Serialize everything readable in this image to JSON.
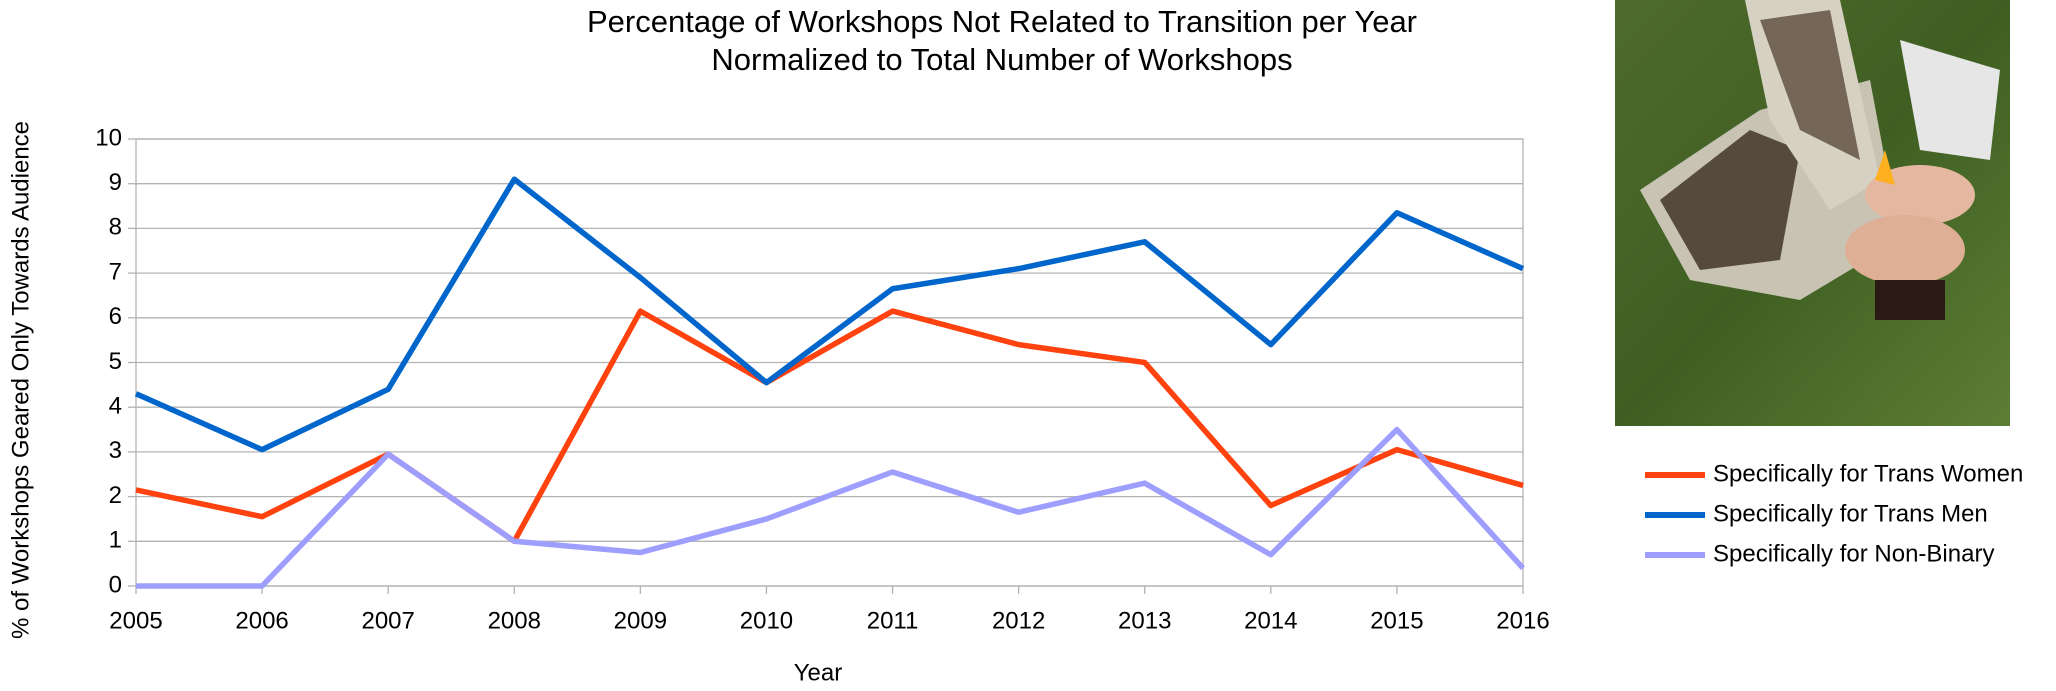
{
  "chart_data": {
    "type": "line",
    "title": [
      "Percentage of Workshops Not Related to Transition per Year",
      "Normalized to Total Number of Workshops"
    ],
    "x_label": "Year",
    "y_label": "% of Workshops Geared Only Towards Audience",
    "x": [
      2005,
      2006,
      2007,
      2008,
      2009,
      2010,
      2011,
      2012,
      2013,
      2014,
      2015,
      2016
    ],
    "series": [
      {
        "name": "Specifically for Trans Women",
        "color": "#ff420e",
        "values": [
          2.15,
          1.55,
          2.95,
          1.0,
          6.15,
          4.55,
          6.15,
          5.4,
          5.0,
          1.8,
          3.05,
          2.25
        ]
      },
      {
        "name": "Specifically for Trans Men",
        "color": "#0066cc",
        "values": [
          4.3,
          3.05,
          4.4,
          9.1,
          6.9,
          4.55,
          6.65,
          7.1,
          7.7,
          5.4,
          8.35,
          7.1
        ]
      },
      {
        "name": "Specifically for Non-Binary",
        "color": "#9e9eff",
        "values": [
          0,
          0,
          2.95,
          1.0,
          0.75,
          1.5,
          2.55,
          1.65,
          2.3,
          0.7,
          3.5,
          0.4
        ]
      }
    ],
    "xlim": [
      2005,
      2016
    ],
    "xticks": [
      2005,
      2006,
      2007,
      2008,
      2009,
      2010,
      2011,
      2012,
      2013,
      2014,
      2015,
      2016
    ],
    "ylim": [
      0,
      10
    ],
    "yticks": [
      0,
      1,
      2,
      3,
      4,
      5,
      6,
      7,
      8,
      9,
      10
    ],
    "grid": true,
    "legend": "right"
  }
}
